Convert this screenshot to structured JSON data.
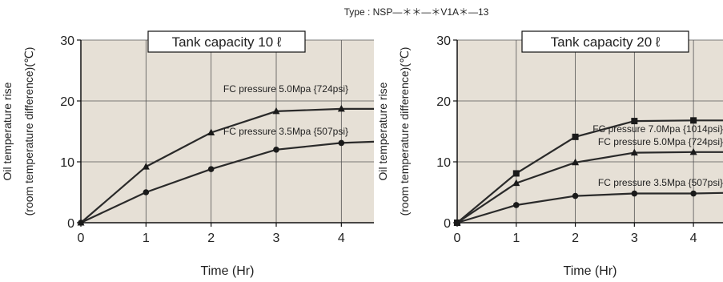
{
  "figure": {
    "type_label": "Type : NSP—＊＊—＊V1A＊—13"
  },
  "chart_data": [
    {
      "type": "line",
      "title": "Tank capacity  10 ℓ",
      "xlabel": "Time (Hr)",
      "ylabel_line1": "Oil temperature rise",
      "ylabel_line2": "(room temperature difference)(℃)",
      "xlim": [
        0,
        4.5
      ],
      "ylim": [
        0,
        30
      ],
      "xticks": [
        "0",
        "1",
        "2",
        "3",
        "4"
      ],
      "yticks": [
        "0",
        "10",
        "20",
        "30"
      ],
      "grid": true,
      "series": [
        {
          "name": "FC pressure   5.0Mpa {724psi}",
          "marker": "triangle",
          "x": [
            0,
            1,
            2,
            3,
            4,
            4.5
          ],
          "y": [
            0,
            9.2,
            14.8,
            18.3,
            18.7,
            18.7
          ]
        },
        {
          "name": "FC pressure   3.5Mpa {507psi}",
          "marker": "circle",
          "x": [
            0,
            1,
            2,
            3,
            4,
            4.5
          ],
          "y": [
            0,
            5.0,
            8.8,
            12.0,
            13.1,
            13.3
          ]
        }
      ]
    },
    {
      "type": "line",
      "title": "Tank capacity  20 ℓ",
      "xlabel": "Time (Hr)",
      "ylabel_line1": "Oil temperature rise",
      "ylabel_line2": "(room temperature difference)(℃)",
      "xlim": [
        0,
        4.5
      ],
      "ylim": [
        0,
        30
      ],
      "xticks": [
        "0",
        "1",
        "2",
        "3",
        "4"
      ],
      "yticks": [
        "0",
        "10",
        "20",
        "30"
      ],
      "grid": true,
      "series": [
        {
          "name": "FC pressure   7.0Mpa {1014psi}",
          "marker": "square",
          "x": [
            0,
            1,
            2,
            3,
            4,
            4.5
          ],
          "y": [
            0,
            8.1,
            14.1,
            16.7,
            16.8,
            16.8
          ]
        },
        {
          "name": "FC pressure   5.0Mpa {724psi}",
          "marker": "triangle",
          "x": [
            0,
            1,
            2,
            3,
            4,
            4.5
          ],
          "y": [
            0,
            6.5,
            9.9,
            11.5,
            11.6,
            11.6
          ]
        },
        {
          "name": "FC pressure   3.5Mpa {507psi}",
          "marker": "circle",
          "x": [
            0,
            1,
            2,
            3,
            4,
            4.5
          ],
          "y": [
            0,
            2.9,
            4.4,
            4.8,
            4.8,
            4.9
          ]
        }
      ]
    }
  ]
}
